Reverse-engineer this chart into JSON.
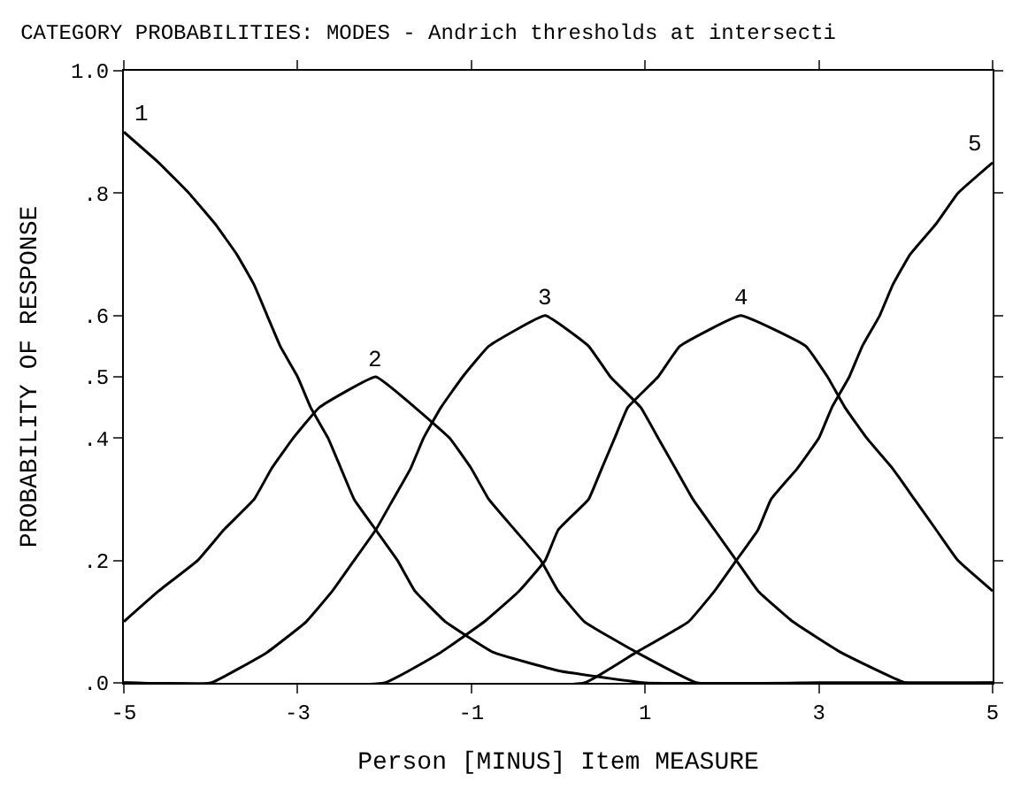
{
  "chart_data": {
    "type": "line",
    "title": "CATEGORY PROBABILITIES: MODES - Andrich thresholds at intersecti",
    "xlabel": "Person [MINUS] Item MEASURE",
    "ylabel": "PROBABILITY OF RESPONSE",
    "xlim": [
      -5,
      5
    ],
    "xticks": [
      -5,
      -3,
      -1,
      1,
      3,
      5
    ],
    "ylim": [
      0,
      1
    ],
    "yticks": [
      {
        "value": 0,
        "label": ".0"
      },
      {
        "value": 0.2,
        "label": ".2"
      },
      {
        "value": 0.4,
        "label": ".4"
      },
      {
        "value": 0.5,
        "label": ".5"
      },
      {
        "value": 0.6,
        "label": ".6"
      },
      {
        "value": 0.8,
        "label": ".8"
      },
      {
        "value": 1.0,
        "label": "1.0"
      }
    ],
    "legend": false,
    "marker": "none",
    "line_style": "solid",
    "series": [
      {
        "name": "1",
        "color": "#000000",
        "x": [
          -5,
          -4.6,
          -4.25,
          -3.95,
          -3.7,
          -3.5,
          -3.35,
          -3.2,
          -3,
          -2.85,
          -2.65,
          -2.5,
          -2.35,
          -2.1,
          -1.85,
          -1.65,
          -1.3,
          -0.75,
          0,
          1,
          3,
          5
        ],
        "values": [
          0.9,
          0.85,
          0.8,
          0.75,
          0.7,
          0.65,
          0.6,
          0.55,
          0.5,
          0.45,
          0.4,
          0.35,
          0.3,
          0.25,
          0.2,
          0.15,
          0.1,
          0.05,
          0.02,
          0,
          0,
          0
        ]
      },
      {
        "name": "2",
        "color": "#000000",
        "x": [
          -5,
          -4.6,
          -4.15,
          -3.85,
          -3.5,
          -3.3,
          -3.05,
          -2.75,
          -2.1,
          -1.65,
          -1.25,
          -1,
          -0.8,
          -0.5,
          -0.2,
          0,
          0.3,
          0.9,
          1.6,
          3,
          5
        ],
        "values": [
          0.1,
          0.15,
          0.2,
          0.25,
          0.3,
          0.35,
          0.4,
          0.45,
          0.5,
          0.45,
          0.4,
          0.35,
          0.3,
          0.25,
          0.2,
          0.15,
          0.1,
          0.05,
          0,
          0,
          0
        ]
      },
      {
        "name": "3",
        "color": "#000000",
        "x": [
          -5,
          -4,
          -3.35,
          -2.9,
          -2.6,
          -2.35,
          -2.1,
          -1.9,
          -1.7,
          -1.55,
          -1.35,
          -1.1,
          -0.8,
          -0.15,
          0.35,
          0.6,
          0.95,
          1.15,
          1.35,
          1.55,
          1.8,
          2.05,
          2.3,
          2.7,
          3.25,
          4,
          5
        ],
        "values": [
          0,
          0,
          0.05,
          0.1,
          0.15,
          0.2,
          0.25,
          0.3,
          0.35,
          0.4,
          0.45,
          0.5,
          0.55,
          0.6,
          0.55,
          0.5,
          0.45,
          0.4,
          0.35,
          0.3,
          0.25,
          0.2,
          0.15,
          0.1,
          0.05,
          0,
          0
        ]
      },
      {
        "name": "4",
        "color": "#000000",
        "x": [
          -5,
          -2,
          -1.35,
          -0.85,
          -0.45,
          -0.15,
          0,
          0.35,
          0.5,
          0.65,
          0.8,
          1.15,
          1.4,
          2.1,
          2.85,
          3.1,
          3.3,
          3.55,
          3.85,
          4.1,
          4.35,
          4.6,
          5
        ],
        "values": [
          0,
          0,
          0.05,
          0.1,
          0.15,
          0.2,
          0.25,
          0.3,
          0.35,
          0.4,
          0.45,
          0.5,
          0.55,
          0.6,
          0.55,
          0.5,
          0.45,
          0.4,
          0.35,
          0.3,
          0.25,
          0.2,
          0.15
        ]
      },
      {
        "name": "5",
        "color": "#000000",
        "x": [
          -5,
          0.3,
          0.9,
          1.5,
          1.8,
          2.05,
          2.3,
          2.45,
          2.75,
          3.0,
          3.15,
          3.35,
          3.5,
          3.7,
          3.85,
          4.05,
          4.35,
          4.6,
          5
        ],
        "values": [
          0,
          0,
          0.05,
          0.1,
          0.15,
          0.2,
          0.25,
          0.3,
          0.35,
          0.4,
          0.45,
          0.5,
          0.55,
          0.6,
          0.65,
          0.7,
          0.75,
          0.8,
          0.85
        ]
      }
    ]
  }
}
